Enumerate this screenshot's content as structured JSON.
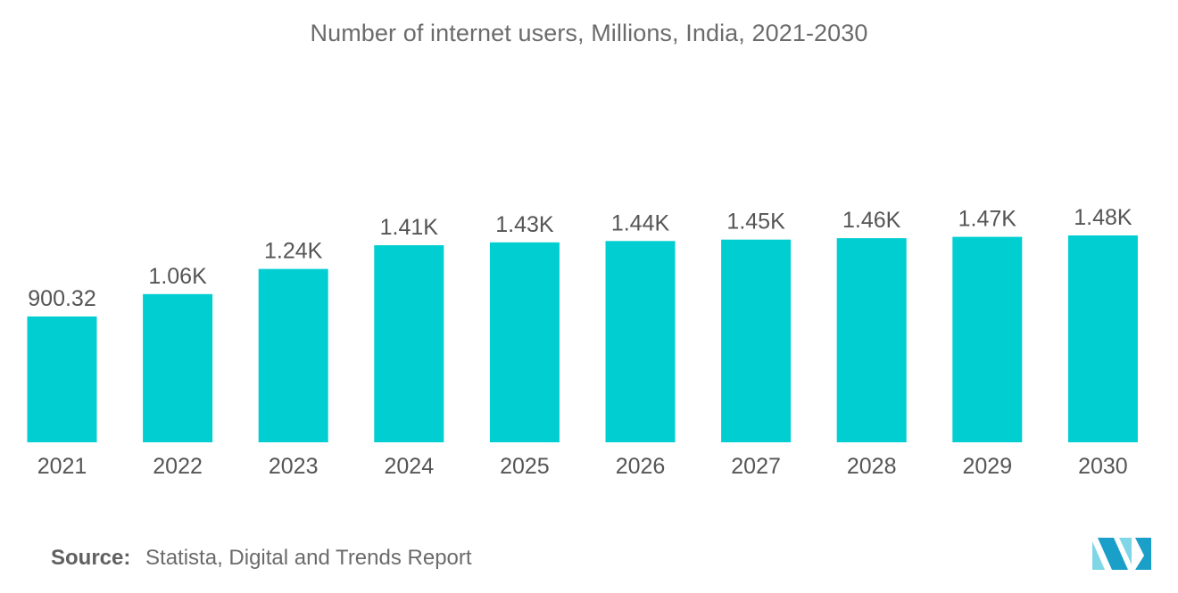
{
  "colors": {
    "bar": "#00ced1",
    "text": "#555555",
    "title": "#6b6b6b",
    "logo_light": "#7fd6e6",
    "logo_dark": "#1a9fc9"
  },
  "footer": {
    "source_label": "Source:",
    "source_text": "Statista, Digital and Trends Report"
  },
  "logo": {
    "icon": "mordor-intelligence-logo-icon"
  },
  "chart_data": {
    "type": "bar",
    "title": "Number of internet users, Millions, India, 2021-2030",
    "xlabel": "",
    "ylabel": "",
    "categories": [
      "2021",
      "2022",
      "2023",
      "2024",
      "2025",
      "2026",
      "2027",
      "2028",
      "2029",
      "2030"
    ],
    "values": [
      900.32,
      1060,
      1240,
      1410,
      1430,
      1440,
      1450,
      1460,
      1470,
      1480
    ],
    "data_labels": [
      "900.32",
      "1.06K",
      "1.24K",
      "1.41K",
      "1.43K",
      "1.44K",
      "1.45K",
      "1.46K",
      "1.47K",
      "1.48K"
    ],
    "ylim": [
      0,
      1480
    ],
    "grid": false,
    "legend": "none"
  }
}
